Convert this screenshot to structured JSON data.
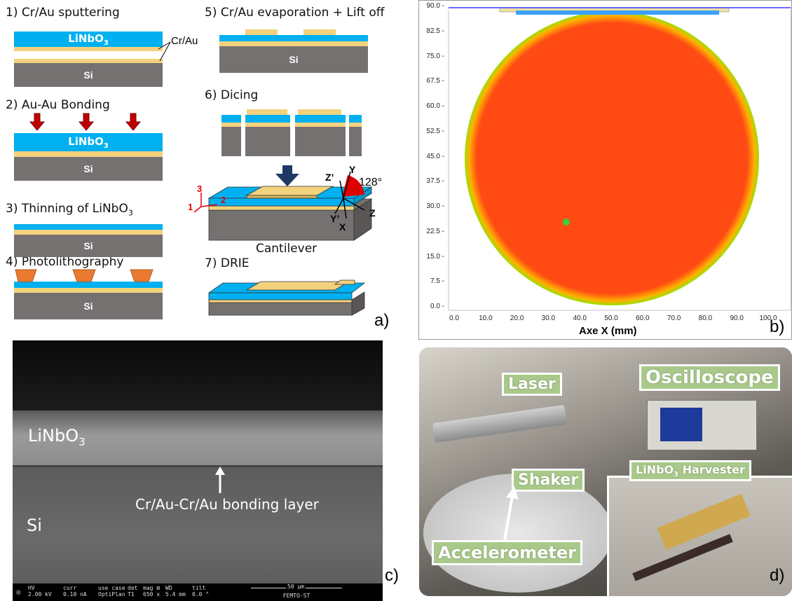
{
  "panel_a": {
    "label": "a)",
    "steps": {
      "s1": "1) Cr/Au sputtering",
      "s2": "2) Au-Au Bonding",
      "s3_pre": "3) Thinning of LiNbO",
      "s3_sub": "3",
      "s4": "4) Photolithography",
      "s5": "5) Cr/Au evaporation + Lift off",
      "s6": "6) Dicing",
      "s7": "7) DRIE"
    },
    "crau": "Cr/Au",
    "linbo_pre": "LiNbO",
    "linbo_sub": "3",
    "si": "Si",
    "cantilever": "Cantilever",
    "axes": {
      "one": "1",
      "two": "2",
      "three": "3",
      "x": "X",
      "y": "Y",
      "z": "Z",
      "zp": "Z’",
      "yp": "Y’",
      "angle": "128°"
    }
  },
  "panel_b": {
    "label": "b)",
    "xlabel": "Axe X (mm)",
    "yticks": [
      "90.0",
      "82.5",
      "75.0",
      "67.5",
      "60.0",
      "52.5",
      "45.0",
      "37.5",
      "30.0",
      "22.5",
      "15.0",
      "7.5",
      "0.0"
    ],
    "xticks": [
      "0.0",
      "10.0",
      "20.0",
      "30.0",
      "40.0",
      "50.0",
      "60.0",
      "70.0",
      "80.0",
      "90.0",
      "100.0"
    ]
  },
  "panel_c": {
    "label": "c)",
    "linbo_pre": "LiNbO",
    "linbo_sub": "3",
    "si": "Si",
    "bond": "Cr/Au-Cr/Au bonding layer",
    "footer": {
      "hv_h": "HV",
      "hv_v": "2.00 kV",
      "curr_h": "curr",
      "curr_v": "0.10 nA",
      "use_h": "use case",
      "use_v": "OptiPlan",
      "det_h": "det",
      "det_v": "T1",
      "mag_h": "mag ⊞",
      "mag_v": "650 x",
      "wd_h": "WD",
      "wd_v": "5.4 mm",
      "tilt_h": "tilt",
      "tilt_v": "0.0 °",
      "scale": "50 µm",
      "lab": "FEMTO-ST"
    }
  },
  "panel_d": {
    "label": "d)",
    "laser": "Laser",
    "oscilloscope": "Oscilloscope",
    "shaker": "Shaker",
    "harvester_pre": "LiNbO",
    "harvester_sub": "3",
    "harvester_post": " Harvester",
    "accelerometer": "Accelerometer"
  },
  "colors": {
    "linbo": "#00b0f0",
    "gold": "#f3d27e",
    "si": "#767171",
    "resist": "#e97a2f",
    "arrow_red": "#c00000",
    "arrow_blue": "#1f3864"
  }
}
